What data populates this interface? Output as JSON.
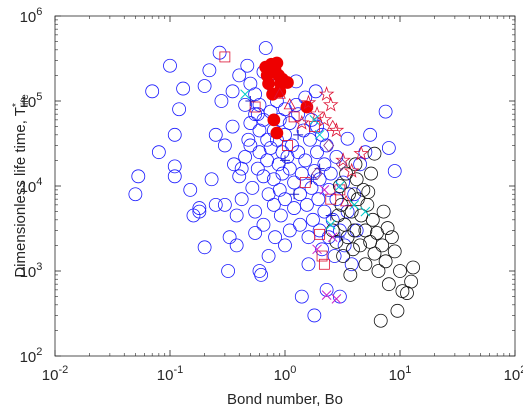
{
  "chart_data": {
    "type": "scatter",
    "title": "",
    "xlabel": "Bond number, Bo",
    "ylabel_main": "Dimensionless life time, T",
    "ylabel_sup": "*",
    "ylabel_sub": "life",
    "xscale": "log",
    "yscale": "log",
    "xlim": [
      0.01,
      100
    ],
    "ylim": [
      100,
      1000000
    ],
    "grid": false,
    "legend": "none",
    "x_ticks": [
      {
        "base": "10",
        "exp": "-2"
      },
      {
        "base": "10",
        "exp": "-1"
      },
      {
        "base": "10",
        "exp": "0"
      },
      {
        "base": "10",
        "exp": "1"
      },
      {
        "base": "10",
        "exp": "2"
      }
    ],
    "y_ticks": [
      {
        "base": "10",
        "exp": "2"
      },
      {
        "base": "10",
        "exp": "3"
      },
      {
        "base": "10",
        "exp": "4"
      },
      {
        "base": "10",
        "exp": "5"
      },
      {
        "base": "10",
        "exp": "6"
      }
    ],
    "series": [
      {
        "marker": "open-circle",
        "color": "#1a1aff",
        "points": [
          [
            0.05,
            8000
          ],
          [
            0.053,
            13000
          ],
          [
            0.07,
            130000
          ],
          [
            0.08,
            25000
          ],
          [
            0.1,
            260000
          ],
          [
            0.11,
            40000
          ],
          [
            0.11,
            17000
          ],
          [
            0.11,
            13000
          ],
          [
            0.12,
            80000
          ],
          [
            0.13,
            140000
          ],
          [
            0.15,
            9000
          ],
          [
            0.16,
            4500
          ],
          [
            0.18,
            5500
          ],
          [
            0.18,
            5000
          ],
          [
            0.2,
            150000
          ],
          [
            0.2,
            1900
          ],
          [
            0.22,
            230000
          ],
          [
            0.23,
            12000
          ],
          [
            0.25,
            40000
          ],
          [
            0.25,
            6000
          ],
          [
            0.27,
            370000
          ],
          [
            0.28,
            100000
          ],
          [
            0.3,
            6000
          ],
          [
            0.3,
            30000
          ],
          [
            0.32,
            1000
          ],
          [
            0.33,
            2500
          ],
          [
            0.35,
            130000
          ],
          [
            0.35,
            50000
          ],
          [
            0.36,
            18000
          ],
          [
            0.38,
            4500
          ],
          [
            0.38,
            2000
          ],
          [
            0.4,
            200000
          ],
          [
            0.4,
            13000
          ],
          [
            0.42,
            7000
          ],
          [
            0.45,
            90000
          ],
          [
            0.45,
            22000
          ],
          [
            0.47,
            260000
          ],
          [
            0.5,
            160000
          ],
          [
            0.5,
            55000
          ],
          [
            0.5,
            30000
          ],
          [
            0.52,
            9500
          ],
          [
            0.55,
            120000
          ],
          [
            0.55,
            70000
          ],
          [
            0.55,
            5000
          ],
          [
            0.55,
            2800
          ],
          [
            0.58,
            16000
          ],
          [
            0.6,
            90000
          ],
          [
            0.6,
            45000
          ],
          [
            0.6,
            25000
          ],
          [
            0.6,
            1000
          ],
          [
            0.62,
            900
          ],
          [
            0.65,
            220000
          ],
          [
            0.65,
            60000
          ],
          [
            0.65,
            13000
          ],
          [
            0.65,
            3500
          ],
          [
            0.68,
            420000
          ],
          [
            0.7,
            35000
          ],
          [
            0.7,
            20000
          ],
          [
            0.72,
            8000
          ],
          [
            0.72,
            1500
          ],
          [
            0.75,
            75000
          ],
          [
            0.75,
            28000
          ],
          [
            0.78,
            150000
          ],
          [
            0.8,
            45000
          ],
          [
            0.8,
            12000
          ],
          [
            0.8,
            6000
          ],
          [
            0.82,
            2500
          ],
          [
            0.85,
            100000
          ],
          [
            0.85,
            35000
          ],
          [
            0.88,
            18000
          ],
          [
            0.9,
            60000
          ],
          [
            0.9,
            9000
          ],
          [
            0.92,
            4500
          ],
          [
            0.95,
            25000
          ],
          [
            0.95,
            14000
          ],
          [
            1.0,
            80000
          ],
          [
            1.0,
            40000
          ],
          [
            1.0,
            7000
          ],
          [
            1.0,
            2000
          ],
          [
            1.05,
            22000
          ],
          [
            1.1,
            55000
          ],
          [
            1.1,
            16000
          ],
          [
            1.1,
            3000
          ],
          [
            1.15,
            30000
          ],
          [
            1.2,
            11000
          ],
          [
            1.2,
            5500
          ],
          [
            1.25,
            170000
          ],
          [
            1.3,
            70000
          ],
          [
            1.3,
            25000
          ],
          [
            1.35,
            8000
          ],
          [
            1.35,
            3500
          ],
          [
            1.4,
            500
          ],
          [
            1.4,
            14000
          ],
          [
            1.45,
            45000
          ],
          [
            1.5,
            110000
          ],
          [
            1.5,
            20000
          ],
          [
            1.55,
            6000
          ],
          [
            1.6,
            2500
          ],
          [
            1.6,
            1200
          ],
          [
            1.65,
            35000
          ],
          [
            1.7,
            60000
          ],
          [
            1.7,
            9500
          ],
          [
            1.75,
            4000
          ],
          [
            1.8,
            300
          ],
          [
            1.8,
            15000
          ],
          [
            1.85,
            130000
          ],
          [
            1.9,
            50000
          ],
          [
            1.9,
            25000
          ],
          [
            1.95,
            7000
          ],
          [
            2.0,
            3000
          ],
          [
            2.0,
            12000
          ],
          [
            2.1,
            1800
          ],
          [
            2.1,
            40000
          ],
          [
            2.2,
            18000
          ],
          [
            2.2,
            5000
          ],
          [
            2.3,
            30000
          ],
          [
            2.3,
            600
          ],
          [
            2.4,
            9000
          ],
          [
            2.4,
            2500
          ],
          [
            2.5,
            14000
          ],
          [
            2.6,
            4000
          ],
          [
            2.7,
            1500
          ],
          [
            2.8,
            22000
          ],
          [
            2.8,
            7000
          ],
          [
            3.0,
            3000
          ],
          [
            3.0,
            500
          ],
          [
            3.2,
            11000
          ],
          [
            3.3,
            2000
          ],
          [
            3.5,
            5000
          ],
          [
            3.5,
            36000
          ],
          [
            3.8,
            1200
          ],
          [
            4.0,
            8000
          ],
          [
            4.2,
            3000
          ],
          [
            4.5,
            18000
          ],
          [
            5.0,
            25000
          ],
          [
            5.5,
            40000
          ],
          [
            7.5,
            75000
          ],
          [
            8.0,
            28000
          ],
          [
            9.0,
            15000
          ],
          [
            1.25,
            90000
          ],
          [
            0.58,
            70000
          ],
          [
            0.48,
            35000
          ],
          [
            0.42,
            16000
          ]
        ]
      },
      {
        "marker": "open-circle",
        "color": "#111111",
        "points": [
          [
            2.6,
            3000
          ],
          [
            2.8,
            2200
          ],
          [
            2.9,
            4500
          ],
          [
            3.0,
            10000
          ],
          [
            3.1,
            6000
          ],
          [
            3.2,
            1500
          ],
          [
            3.3,
            3500
          ],
          [
            3.4,
            14000
          ],
          [
            3.5,
            2500
          ],
          [
            3.6,
            8000
          ],
          [
            3.8,
            5000
          ],
          [
            3.9,
            1800
          ],
          [
            4.0,
            3000
          ],
          [
            4.2,
            12000
          ],
          [
            4.3,
            7000
          ],
          [
            4.5,
            2000
          ],
          [
            4.6,
            4500
          ],
          [
            4.8,
            9000
          ],
          [
            5.0,
            1200
          ],
          [
            5.0,
            3000
          ],
          [
            5.2,
            6000
          ],
          [
            5.5,
            2200
          ],
          [
            5.6,
            14000
          ],
          [
            5.8,
            4000
          ],
          [
            6.0,
            1600
          ],
          [
            6.3,
            2800
          ],
          [
            6.5,
            1000
          ],
          [
            6.8,
            260
          ],
          [
            7.0,
            2000
          ],
          [
            7.2,
            5000
          ],
          [
            7.5,
            1300
          ],
          [
            8.0,
            700
          ],
          [
            8.5,
            2500
          ],
          [
            9.0,
            1700
          ],
          [
            9.5,
            340
          ],
          [
            10.0,
            1000
          ],
          [
            10.5,
            580
          ],
          [
            11.5,
            550
          ],
          [
            12.5,
            750
          ],
          [
            13.0,
            1100
          ],
          [
            6.0,
            24000
          ],
          [
            5.3,
            8500
          ],
          [
            4.1,
            18000
          ],
          [
            3.7,
            900
          ],
          [
            7.8,
            3200
          ]
        ]
      },
      {
        "marker": "filled-circle",
        "color": "#ee0000",
        "points": [
          [
            0.68,
            250000
          ],
          [
            0.7,
            200000
          ],
          [
            0.72,
            160000
          ],
          [
            0.75,
            240000
          ],
          [
            0.78,
            120000
          ],
          [
            0.82,
            230000
          ],
          [
            0.85,
            280000
          ],
          [
            0.88,
            200000
          ],
          [
            0.9,
            130000
          ],
          [
            0.95,
            180000
          ],
          [
            0.92,
            160000
          ],
          [
            0.8,
            60000
          ],
          [
            0.85,
            42000
          ],
          [
            1.05,
            165000
          ],
          [
            0.76,
            270000
          ],
          [
            1.55,
            85000
          ]
        ]
      },
      {
        "marker": "open-square",
        "color": "#dd1133",
        "points": [
          [
            0.3,
            330000
          ],
          [
            0.55,
            85000
          ],
          [
            1.2,
            65000
          ],
          [
            1.5,
            11000
          ],
          [
            1.8,
            50000
          ],
          [
            2.0,
            2700
          ],
          [
            2.1,
            1500
          ],
          [
            2.2,
            1200
          ],
          [
            2.5,
            7000
          ],
          [
            3.0,
            9000
          ],
          [
            1.05,
            30000
          ]
        ]
      },
      {
        "marker": "plus",
        "color": "#2222cc",
        "points": [
          [
            0.5,
            100000
          ],
          [
            1.0,
            20000
          ],
          [
            1.3,
            40000
          ],
          [
            1.7,
            12000
          ],
          [
            2.0,
            16000
          ],
          [
            2.5,
            4500
          ],
          [
            3.0,
            2500
          ],
          [
            1.2,
            8000
          ]
        ]
      },
      {
        "marker": "star",
        "color": "#dd1133",
        "points": [
          [
            1.6,
            95000
          ],
          [
            1.9,
            70000
          ],
          [
            2.2,
            60000
          ],
          [
            2.5,
            90000
          ],
          [
            2.8,
            45000
          ],
          [
            3.2,
            20000
          ],
          [
            4.6,
            24000
          ],
          [
            3.8,
            15000
          ],
          [
            2.3,
            120000
          ],
          [
            1.4,
            55000
          ]
        ]
      },
      {
        "marker": "cross",
        "color": "#00cccc",
        "points": [
          [
            0.45,
            120000
          ],
          [
            1.8,
            60000
          ],
          [
            2.0,
            40000
          ],
          [
            3.0,
            10000
          ],
          [
            4.0,
            6000
          ],
          [
            2.5,
            3500
          ],
          [
            5.0,
            5000
          ]
        ]
      },
      {
        "marker": "cross",
        "color": "#cc22cc",
        "points": [
          [
            2.3,
            520
          ],
          [
            2.8,
            470
          ],
          [
            1.9,
            1800
          ],
          [
            2.6,
            2500
          ],
          [
            2.2,
            9000
          ]
        ]
      },
      {
        "marker": "triangle",
        "color": "#dd1133",
        "points": [
          [
            1.1,
            90000
          ],
          [
            2.6,
            50000
          ],
          [
            3.4,
            6500
          ],
          [
            0.9,
            120000
          ]
        ]
      },
      {
        "marker": "diamond",
        "color": "#7b2d8e",
        "points": [
          [
            1.9,
            14000
          ],
          [
            2.4,
            30000
          ],
          [
            3.1,
            18000
          ]
        ]
      }
    ]
  }
}
